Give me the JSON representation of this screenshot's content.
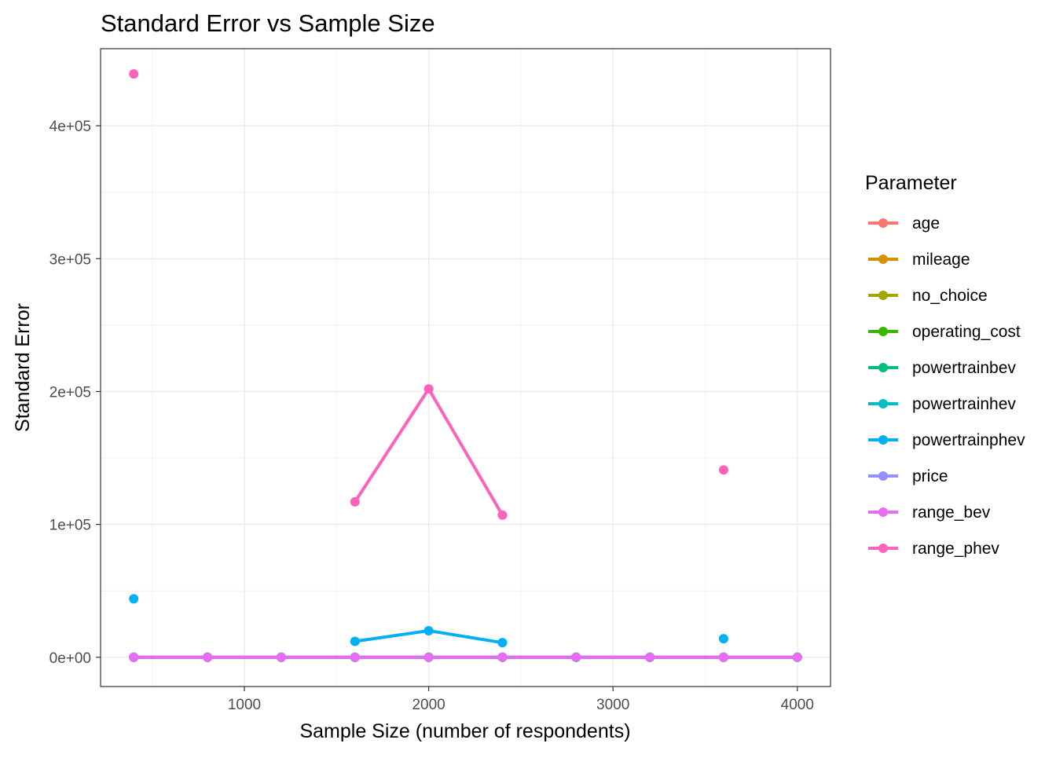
{
  "chart_data": {
    "type": "line",
    "title": "Standard Error vs Sample Size",
    "xlabel": "Sample Size (number of respondents)",
    "ylabel": "Standard Error",
    "xlim": [
      220,
      4180
    ],
    "ylim": [
      -22000,
      458000
    ],
    "x_ticks": [
      1000,
      2000,
      3000,
      4000
    ],
    "x_tick_labels": [
      "1000",
      "2000",
      "3000",
      "4000"
    ],
    "y_ticks": [
      0,
      100000,
      200000,
      300000,
      400000
    ],
    "y_tick_labels": [
      "0e+00",
      "1e+05",
      "2e+05",
      "3e+05",
      "4e+05"
    ],
    "grid": true,
    "legend_title": "Parameter",
    "legend_position": "right",
    "series": [
      {
        "name": "age",
        "color": "#F8766D",
        "x": [
          400,
          800,
          1200,
          1600,
          2000,
          2400,
          2800,
          3200,
          3600,
          4000
        ],
        "y": [
          0,
          0,
          0,
          0,
          0,
          0,
          0,
          0,
          0,
          0
        ]
      },
      {
        "name": "mileage",
        "color": "#D89000",
        "x": [
          400,
          800,
          1200,
          1600,
          2000,
          2400,
          2800,
          3200,
          3600,
          4000
        ],
        "y": [
          0,
          0,
          0,
          0,
          0,
          0,
          0,
          0,
          0,
          0
        ]
      },
      {
        "name": "no_choice",
        "color": "#A3A500",
        "x": [
          400,
          800,
          1200,
          1600,
          2000,
          2400,
          2800,
          3200,
          3600,
          4000
        ],
        "y": [
          0,
          0,
          0,
          0,
          0,
          0,
          0,
          0,
          0,
          0
        ]
      },
      {
        "name": "operating_cost",
        "color": "#39B600",
        "x": [
          400,
          800,
          1200,
          1600,
          2000,
          2400,
          2800,
          3200,
          3600,
          4000
        ],
        "y": [
          0,
          0,
          0,
          0,
          0,
          0,
          0,
          0,
          0,
          0
        ]
      },
      {
        "name": "powertrainbev",
        "color": "#00BF7D",
        "x": [
          400,
          800,
          1200,
          1600,
          2000,
          2400,
          2800,
          3200,
          3600,
          4000
        ],
        "y": [
          0,
          0,
          0,
          0,
          0,
          0,
          0,
          0,
          0,
          0
        ]
      },
      {
        "name": "powertrainhev",
        "color": "#00BFC4",
        "x": [
          400,
          800,
          1200,
          1600,
          2000,
          2400,
          2800,
          3200,
          3600,
          4000
        ],
        "y": [
          0,
          0,
          0,
          0,
          0,
          0,
          0,
          0,
          0,
          0
        ]
      },
      {
        "name": "powertrainphev",
        "color": "#00B0F6",
        "x": [
          400,
          800,
          1200,
          1600,
          2000,
          2400,
          2800,
          3200,
          3600,
          4000
        ],
        "y": [
          44000,
          null,
          null,
          12000,
          20000,
          11000,
          null,
          null,
          14000,
          null
        ]
      },
      {
        "name": "price",
        "color": "#9590FF",
        "x": [
          400,
          800,
          1200,
          1600,
          2000,
          2400,
          2800,
          3200,
          3600,
          4000
        ],
        "y": [
          0,
          0,
          0,
          0,
          0,
          0,
          0,
          0,
          0,
          0
        ]
      },
      {
        "name": "range_bev",
        "color": "#E76BF3",
        "x": [
          400,
          800,
          1200,
          1600,
          2000,
          2400,
          2800,
          3200,
          3600,
          4000
        ],
        "y": [
          0,
          0,
          0,
          0,
          0,
          0,
          0,
          0,
          0,
          0
        ]
      },
      {
        "name": "range_phev",
        "color": "#FF62BC",
        "x": [
          400,
          800,
          1200,
          1600,
          2000,
          2400,
          2800,
          3200,
          3600,
          4000
        ],
        "y": [
          439000,
          null,
          null,
          117000,
          202000,
          107000,
          null,
          null,
          141000,
          null
        ]
      }
    ]
  }
}
